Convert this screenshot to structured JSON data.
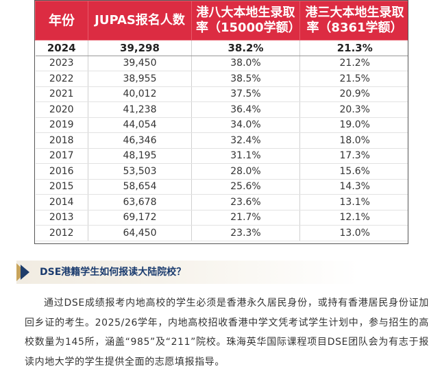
{
  "table": {
    "headers": [
      "年份",
      "JUPAS报名人数",
      "港八大本地生录取率（15000学额）",
      "港三大本地生录取率（8361学额）"
    ],
    "rows": [
      [
        "2024",
        "39,298",
        "38.2%",
        "21.3%"
      ],
      [
        "2023",
        "39,450",
        "38.0%",
        "21.2%"
      ],
      [
        "2022",
        "38,955",
        "38.5%",
        "21.5%"
      ],
      [
        "2021",
        "40,012",
        "37.5%",
        "20.9%"
      ],
      [
        "2020",
        "41,238",
        "36.4%",
        "20.3%"
      ],
      [
        "2019",
        "44,054",
        "34.0%",
        "19.0%"
      ],
      [
        "2018",
        "46,346",
        "32.4%",
        "18.0%"
      ],
      [
        "2017",
        "48,195",
        "31.1%",
        "17.3%"
      ],
      [
        "2016",
        "53,503",
        "28.0%",
        "15.6%"
      ],
      [
        "2015",
        "58,654",
        "25.6%",
        "14.3%"
      ],
      [
        "2014",
        "63,678",
        "23.6%",
        "13.1%"
      ],
      [
        "2013",
        "69,172",
        "21.7%",
        "12.1%"
      ],
      [
        "2012",
        "64,450",
        "23.3%",
        "13.0%"
      ]
    ]
  },
  "section": {
    "title": "DSE港籍学生如何报读大陆院校？",
    "icon": "chevron-right-icon"
  },
  "paragraph": "通过DSE成绩报考内地高校的学生必须是香港永久居民身份，或持有香港居民身份证加回乡证的考生。2025/26学年，内地高校招收香港中学文凭考试学生计划中，参与招生的高校数量为145所，涵盖“985”及“211”院校。珠海英华国际课程项目DSE团队会为有志于报读内地大学的学生提供全面的志愿填报指导。",
  "colors": {
    "header_bg": "#dc2c42",
    "header_text": "#ffffff",
    "title_text": "#1a3b6e",
    "icon_dark": "#1e3d6b",
    "icon_gold": "#c8a45c"
  }
}
